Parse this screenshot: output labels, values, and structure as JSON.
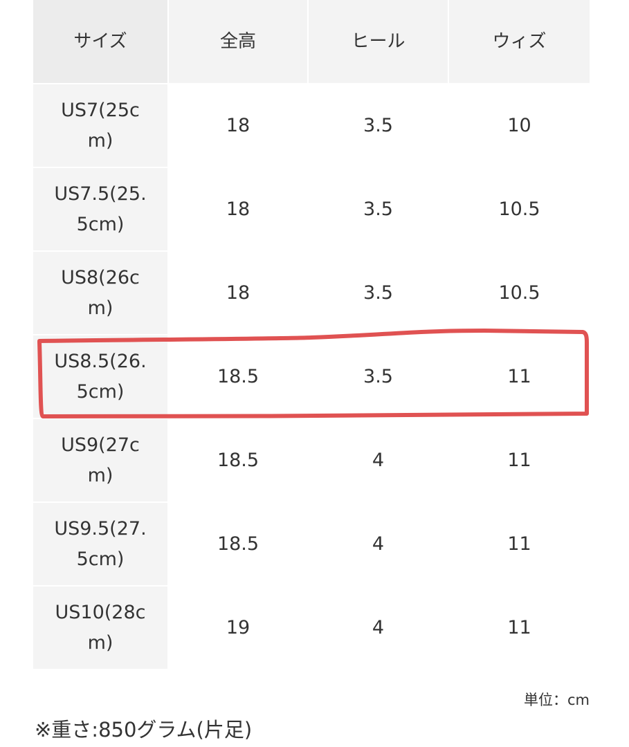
{
  "table": {
    "headers": [
      "サイズ",
      "全高",
      "ヒール",
      "ウィズ"
    ],
    "rows": [
      [
        "US7(25c\nm)",
        "18",
        "3.5",
        "10"
      ],
      [
        "US7.5(25.\n5cm)",
        "18",
        "3.5",
        "10.5"
      ],
      [
        "US8(26c\nm)",
        "18",
        "3.5",
        "10.5"
      ],
      [
        "US8.5(26.\n5cm)",
        "18.5",
        "3.5",
        "11"
      ],
      [
        "US9(27c\nm)",
        "18.5",
        "4",
        "11"
      ],
      [
        "US9.5(27.\n5cm)",
        "18.5",
        "4",
        "11"
      ],
      [
        "US10(28c\nm)",
        "19",
        "4",
        "11"
      ]
    ],
    "highlighted_row": "US8.5(26.5cm)"
  },
  "unit_label": "単位：cm",
  "weight_note": "※重さ:850グラム(片足)",
  "colors": {
    "highlight": "#e05252",
    "header_bg": "#f3f3f3",
    "size_col_bg": "#f4f4f4"
  }
}
